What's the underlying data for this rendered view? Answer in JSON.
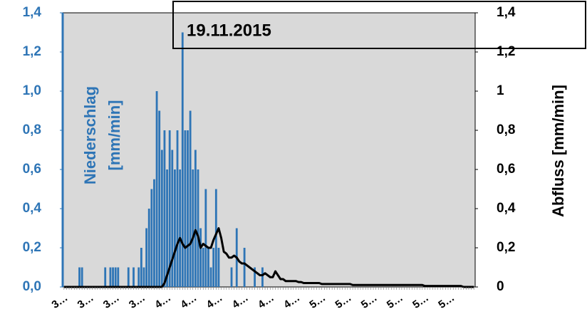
{
  "chart_data": {
    "type": "bar",
    "title": "19.11.2015",
    "ylabel": [
      "Niederschlag",
      "[mm/min]"
    ],
    "y2label": "Abfluss [mm/min]",
    "categories": [
      "3…",
      null,
      null,
      null,
      null,
      null,
      null,
      null,
      null,
      null,
      "3…",
      null,
      null,
      null,
      null,
      null,
      null,
      null,
      null,
      null,
      "3…",
      null,
      null,
      null,
      null,
      null,
      null,
      null,
      null,
      null,
      "3…",
      null,
      null,
      null,
      null,
      null,
      null,
      null,
      null,
      null,
      "4…",
      null,
      null,
      null,
      null,
      null,
      null,
      null,
      null,
      null,
      "4…",
      null,
      null,
      null,
      null,
      null,
      null,
      null,
      null,
      null,
      "4…",
      null,
      null,
      null,
      null,
      null,
      null,
      null,
      null,
      null,
      "4…",
      null,
      null,
      null,
      null,
      null,
      null,
      null,
      null,
      null,
      "4…",
      null,
      null,
      null,
      null,
      null,
      null,
      null,
      null,
      null,
      "4…",
      null,
      null,
      null,
      null,
      null,
      null,
      null,
      null,
      null,
      "5…",
      null,
      null,
      null,
      null,
      null,
      null,
      null,
      null,
      null,
      "5…",
      null,
      null,
      null,
      null,
      null,
      null,
      null,
      null,
      null,
      "5…",
      null,
      null,
      null,
      null,
      null,
      null,
      null,
      null,
      null,
      "5…",
      null,
      null,
      null,
      null,
      null,
      null,
      null,
      null,
      null,
      "5…",
      null,
      null,
      null,
      null,
      null,
      null,
      null,
      null,
      null,
      "5…",
      null,
      null,
      null,
      null,
      null,
      null,
      null,
      null,
      null
    ],
    "series": [
      {
        "type": "bar",
        "color": "#2e75b6",
        "values": [
          0,
          0,
          0,
          0,
          0,
          0,
          0.1,
          0.1,
          0,
          0,
          0,
          0,
          0,
          0,
          0,
          0,
          0.1,
          0,
          0.1,
          0.1,
          0.1,
          0.1,
          0,
          0,
          0,
          0.1,
          0,
          0.1,
          0,
          0.1,
          0.2,
          0.1,
          0.3,
          0.4,
          0.5,
          0.55,
          1.0,
          0.9,
          0.7,
          0.8,
          0.6,
          0.8,
          0.7,
          0.6,
          0.8,
          0.6,
          1.3,
          0.8,
          0.8,
          0.9,
          0.6,
          0.7,
          0.6,
          0.3,
          0.2,
          0.5,
          0.2,
          0.1,
          0.2,
          0.5,
          0.2,
          0,
          0,
          0,
          0,
          0.1,
          0,
          0.3,
          0,
          0,
          0.2,
          0,
          0,
          0,
          0.1,
          0,
          0,
          0.1,
          0,
          0,
          0,
          0,
          0,
          0,
          0,
          0,
          0,
          0,
          0,
          0,
          0,
          0,
          0,
          0,
          0,
          0,
          0,
          0,
          0,
          0,
          0,
          0,
          0,
          0,
          0,
          0,
          0,
          0,
          0,
          0,
          0,
          0,
          0,
          0,
          0,
          0,
          0,
          0,
          0,
          0,
          0,
          0,
          0,
          0,
          0,
          0,
          0,
          0,
          0,
          0,
          0,
          0,
          0,
          0,
          0,
          0,
          0,
          0,
          0,
          0,
          0,
          0,
          0,
          0,
          0,
          0,
          0,
          0,
          0,
          0,
          0,
          0,
          0,
          0,
          0,
          0,
          0,
          0,
          0,
          0
        ]
      },
      {
        "type": "line",
        "axis": "y2",
        "color": "#000000",
        "values": [
          0,
          0,
          0,
          0,
          0,
          0,
          0,
          0,
          0,
          0,
          0,
          0,
          0,
          0,
          0,
          0,
          0,
          0,
          0,
          0,
          0,
          0,
          0,
          0,
          0,
          0,
          0,
          0,
          0,
          0,
          0,
          0,
          0,
          0,
          0,
          0,
          0,
          0,
          0,
          0.02,
          0.06,
          0.1,
          0.14,
          0.18,
          0.22,
          0.25,
          0.22,
          0.2,
          0.21,
          0.22,
          0.25,
          0.29,
          0.26,
          0.2,
          0.22,
          0.21,
          0.2,
          0.2,
          0.24,
          0.27,
          0.3,
          0.25,
          0.18,
          0.17,
          0.15,
          0.15,
          0.16,
          0.15,
          0.13,
          0.12,
          0.12,
          0.11,
          0.1,
          0.09,
          0.08,
          0.07,
          0.06,
          0.06,
          0.07,
          0.06,
          0.05,
          0.05,
          0.08,
          0.06,
          0.04,
          0.04,
          0.03,
          0.03,
          0.03,
          0.03,
          0.03,
          0.025,
          0.025,
          0.02,
          0.02,
          0.02,
          0.02,
          0.02,
          0.02,
          0.02,
          0.015,
          0.015,
          0.015,
          0.015,
          0.015,
          0.015,
          0.015,
          0.015,
          0.015,
          0.015,
          0.015,
          0.015,
          0.01,
          0.01,
          0.01,
          0.01,
          0.01,
          0.01,
          0.01,
          0.01,
          0.01,
          0.01,
          0.01,
          0.01,
          0.01,
          0.01,
          0.01,
          0.01,
          0.01,
          0.01,
          0.01,
          0.01,
          0.01,
          0.01,
          0.01,
          0.01,
          0.01,
          0.01,
          0.01,
          0.01,
          0.005,
          0.005,
          0.005,
          0.005,
          0.005,
          0.005,
          0.005,
          0.005,
          0.005,
          0.005,
          0.005,
          0.005,
          0.005,
          0.005,
          0.005,
          0,
          0,
          0,
          0,
          0
        ]
      }
    ],
    "ylim": [
      0,
      1.4
    ],
    "yticks": [
      {
        "value": 0,
        "label": "0,0"
      },
      {
        "value": 0.2,
        "label": "0,2"
      },
      {
        "value": 0.4,
        "label": "0,4"
      },
      {
        "value": 0.6,
        "label": "0,6"
      },
      {
        "value": 0.8,
        "label": "0,8"
      },
      {
        "value": 1.0,
        "label": "1,0"
      },
      {
        "value": 1.2,
        "label": "1,2"
      },
      {
        "value": 1.4,
        "label": "1,4"
      }
    ],
    "y2lim": [
      0,
      1.4
    ],
    "y2ticks": [
      0,
      {
        "value": 0.2,
        "label": "0,2"
      },
      {
        "value": 0.4,
        "label": "0,4"
      },
      {
        "value": 0.6,
        "label": "0,6"
      },
      {
        "value": 0.8,
        "label": "0,8"
      },
      1,
      {
        "value": 1.2,
        "label": "1,2"
      },
      {
        "value": 1.4,
        "label": "1,4"
      }
    ],
    "plot_background": "#d9d9d9"
  }
}
